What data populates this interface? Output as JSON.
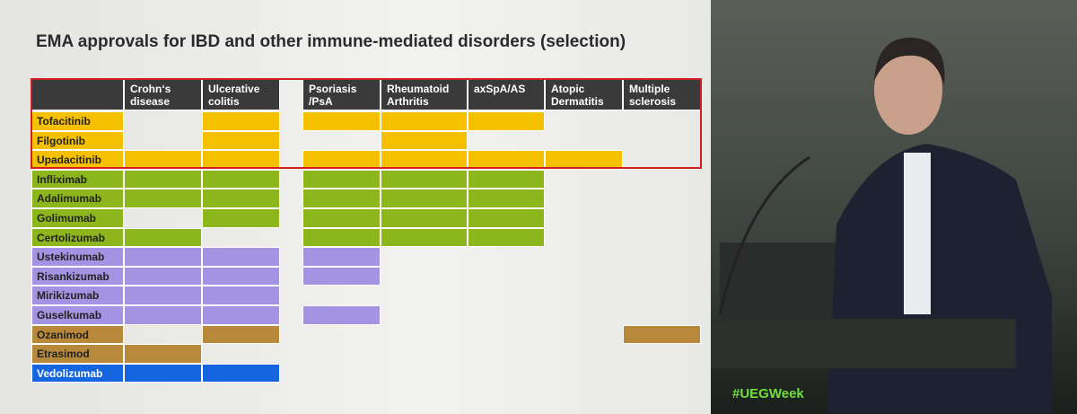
{
  "slide": {
    "title": "EMA approvals for IBD and other immune-mediated disorders (selection)"
  },
  "table": {
    "columns": [
      "Crohn‘s disease",
      "Ulcerative colitis",
      "Psoriasis /PsA",
      "Rheumatoid Arthritis",
      "axSpA/AS",
      "Atopic Dermatitis",
      "Multiple sclerosis"
    ],
    "rows": [
      {
        "name": "Tofacitinib",
        "color": "#f5c000",
        "cells": [
          false,
          true,
          true,
          true,
          true,
          false,
          false
        ]
      },
      {
        "name": "Filgotinib",
        "color": "#f5c000",
        "cells": [
          false,
          true,
          false,
          true,
          false,
          false,
          false
        ]
      },
      {
        "name": "Upadacitinib",
        "color": "#f5c000",
        "cells": [
          true,
          true,
          true,
          true,
          true,
          true,
          false
        ]
      },
      {
        "name": "Infliximab",
        "color": "#8db51c",
        "cells": [
          true,
          true,
          true,
          true,
          true,
          false,
          false
        ]
      },
      {
        "name": "Adalimumab",
        "color": "#8db51c",
        "cells": [
          true,
          true,
          true,
          true,
          true,
          false,
          false
        ]
      },
      {
        "name": "Golimumab",
        "color": "#8db51c",
        "cells": [
          false,
          true,
          true,
          true,
          true,
          false,
          false
        ]
      },
      {
        "name": "Certolizumab",
        "color": "#8db51c",
        "cells": [
          true,
          false,
          true,
          true,
          true,
          false,
          false
        ]
      },
      {
        "name": "Ustekinumab",
        "color": "#a393e2",
        "cells": [
          true,
          true,
          true,
          false,
          false,
          false,
          false
        ]
      },
      {
        "name": "Risankizumab",
        "color": "#a393e2",
        "cells": [
          true,
          true,
          true,
          false,
          false,
          false,
          false
        ]
      },
      {
        "name": "Mirikizumab",
        "color": "#a393e2",
        "cells": [
          true,
          true,
          false,
          false,
          false,
          false,
          false
        ]
      },
      {
        "name": "Guselkumab",
        "color": "#a393e2",
        "cells": [
          true,
          true,
          true,
          false,
          false,
          false,
          false
        ]
      },
      {
        "name": "Ozanimod",
        "color": "#b8893a",
        "cells": [
          false,
          true,
          false,
          false,
          false,
          false,
          true
        ]
      },
      {
        "name": "Etrasimod",
        "color": "#b8893a",
        "cells": [
          true,
          false,
          false,
          false,
          false,
          false,
          false
        ]
      },
      {
        "name": "Vedolizumab",
        "color": "#1565e0",
        "cells": [
          true,
          true,
          false,
          false,
          false,
          false,
          false
        ]
      }
    ]
  },
  "event": {
    "hashtag": "#UEGWeek"
  }
}
